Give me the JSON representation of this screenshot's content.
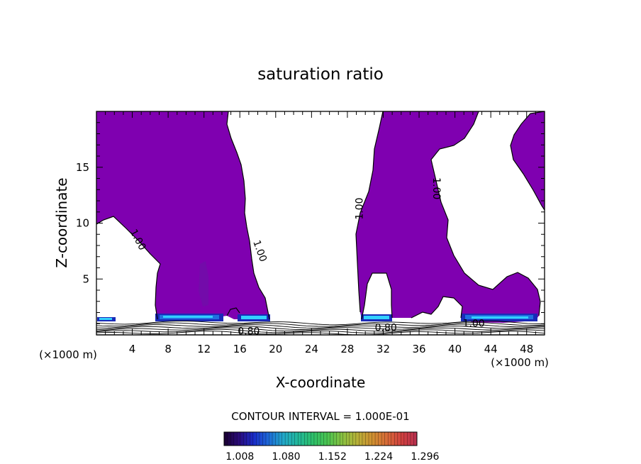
{
  "chart_data": {
    "type": "contour",
    "title": "saturation ratio",
    "xlabel": "X-coordinate",
    "ylabel": "Z-coordinate",
    "x_unit_left": "(×1000 m)",
    "x_unit_right": "(×1000 m)",
    "xlim": [
      0,
      50
    ],
    "ylim": [
      0,
      20
    ],
    "x_ticks": [
      4,
      8,
      12,
      16,
      20,
      24,
      28,
      32,
      36,
      40,
      44,
      48
    ],
    "y_ticks": [
      5,
      10,
      15
    ],
    "contour_interval_text": "CONTOUR INTERVAL = 1.000E-01",
    "contour_labels": [
      {
        "text": "1.00",
        "x": 4.6,
        "z": 8.5,
        "angle": 62
      },
      {
        "text": "1.00",
        "x": 18.2,
        "z": 7.5,
        "angle": 70
      },
      {
        "text": "1.00",
        "x": 29.4,
        "z": 11.3,
        "angle": -90
      },
      {
        "text": "1.00",
        "x": 37.9,
        "z": 13.1,
        "angle": 90
      },
      {
        "text": "0.80",
        "x": 17.0,
        "z": 0.3,
        "angle": 0
      },
      {
        "text": "0.80",
        "x": 32.3,
        "z": 0.6,
        "angle": 0
      },
      {
        "text": "1.00",
        "x": 42.1,
        "z": 1.0,
        "angle": 0
      }
    ],
    "colorbar": {
      "tick_labels": [
        "1.008",
        "1.080",
        "1.152",
        "1.224",
        "1.296"
      ],
      "range": [
        1.0,
        1.3
      ],
      "colors": [
        "#1a0030",
        "#2a0a7a",
        "#1a2cc8",
        "#1e6ad8",
        "#22a8c8",
        "#22b89a",
        "#2ec06a",
        "#4cc450",
        "#8ac040",
        "#b8b038",
        "#d09030",
        "#d86a38",
        "#d04040",
        "#b83050"
      ]
    },
    "fill_color": "#7f00b0",
    "colors": {
      "supersat_fill": "#7f00b0",
      "high_band_light": "#33d0ff",
      "high_band_mid": "#2070e0",
      "high_band_dark": "#1a2ab8"
    }
  }
}
